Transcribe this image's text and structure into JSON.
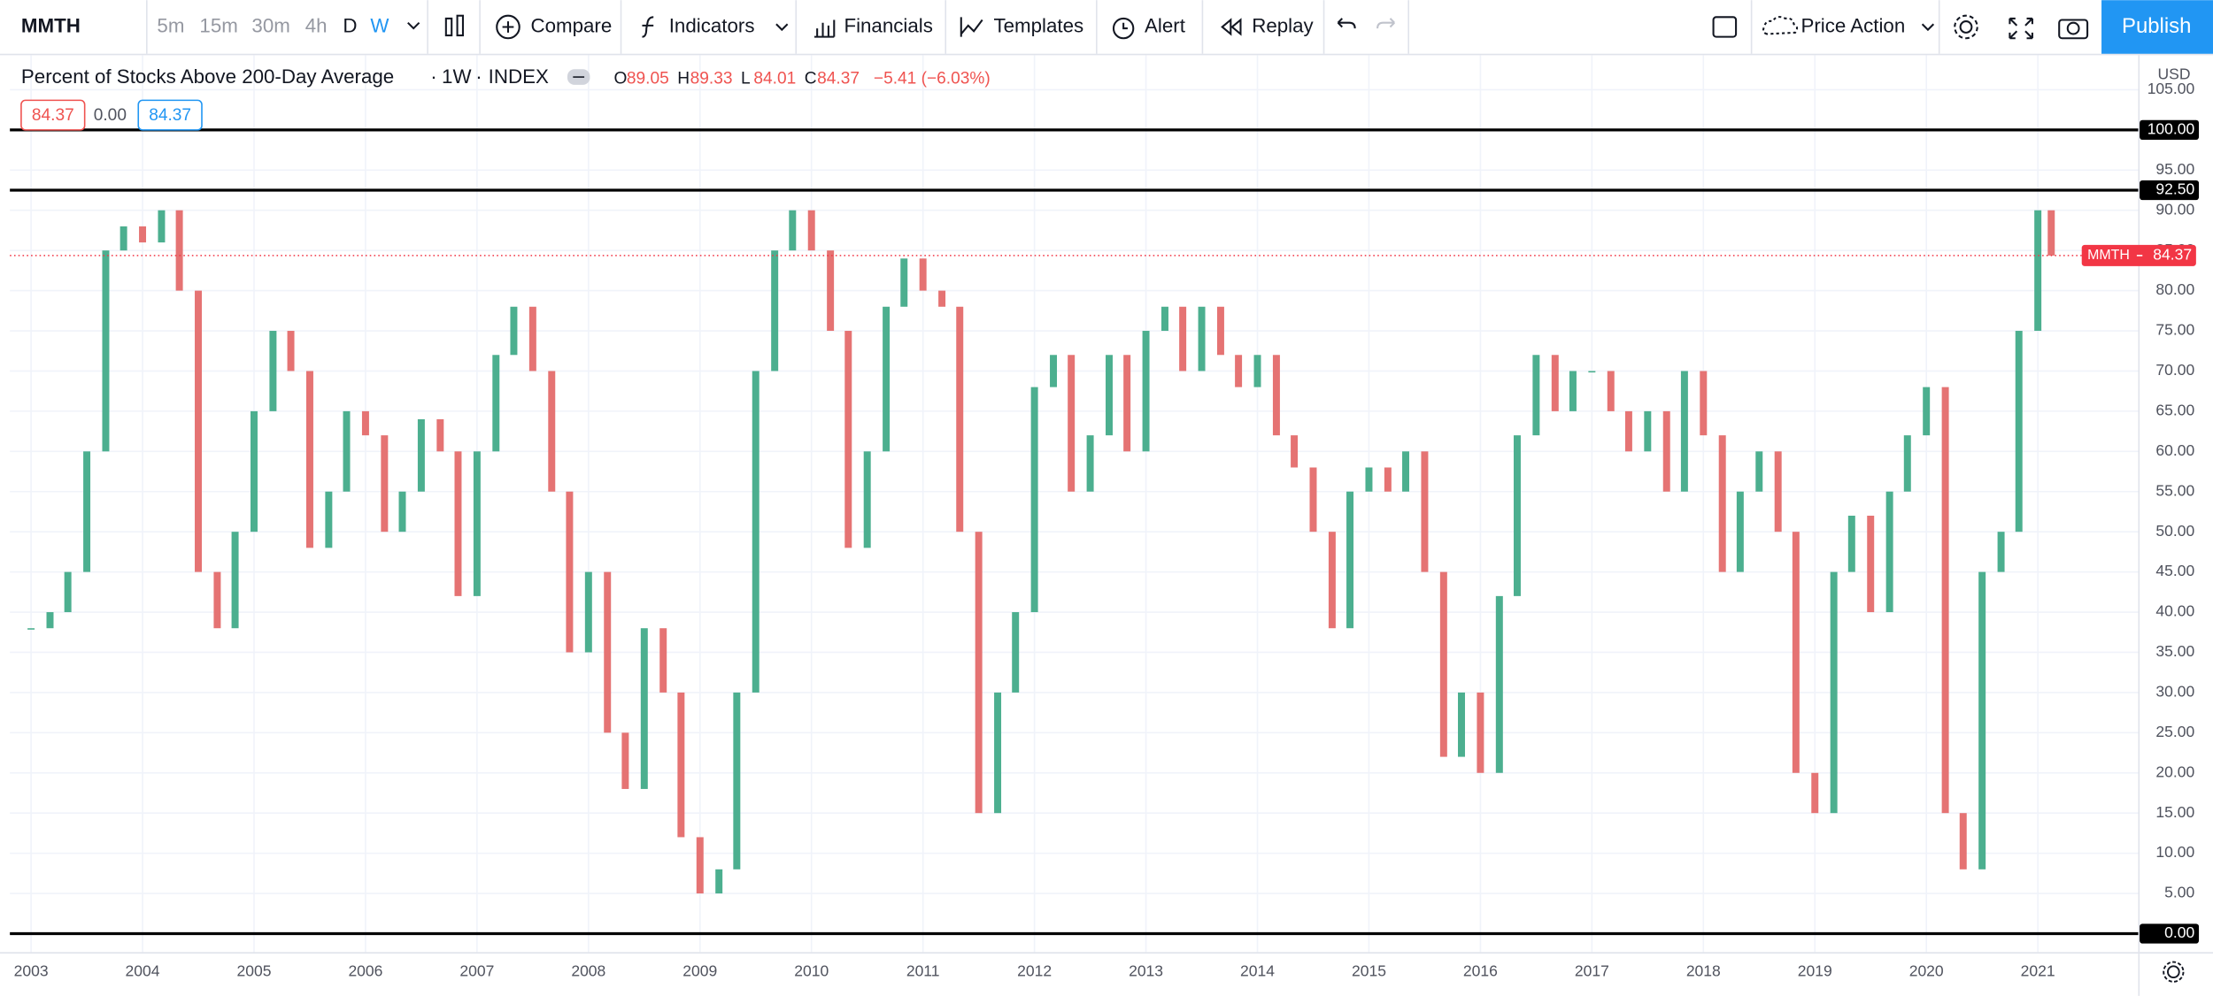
{
  "toolbar": {
    "symbol": "MMTH",
    "intervals": [
      "5m",
      "15m",
      "30m",
      "4h",
      "D",
      "W"
    ],
    "buttons": [
      "Compare",
      "Indicators",
      "Financials",
      "Templates",
      "Alert",
      "Replay"
    ],
    "layout": "Price Action",
    "publish": "Publish"
  },
  "legend": {
    "title": "Percent of Stocks Above 200-Day Average",
    "interval": "1W",
    "exchange": "INDEX",
    "ohlc": [
      {
        "label": "O",
        "value": "89.05"
      },
      {
        "label": "H",
        "value": "89.33"
      },
      {
        "label": "L",
        "value": "84.01"
      },
      {
        "label": "C",
        "value": "84.37"
      }
    ],
    "change": "−5.41 (−6.03%)",
    "value_boxes": [
      "84.37",
      "0.00",
      "84.37"
    ]
  },
  "chart_data": {
    "type": "candlestick",
    "currency": "USD",
    "x": [
      2003,
      2003.17,
      2003.33,
      2003.5,
      2003.67,
      2003.83,
      2004,
      2004.17,
      2004.33,
      2004.5,
      2004.67,
      2004.83,
      2005,
      2005.17,
      2005.33,
      2005.5,
      2005.67,
      2005.83,
      2006,
      2006.17,
      2006.33,
      2006.5,
      2006.67,
      2006.83,
      2007,
      2007.17,
      2007.33,
      2007.5,
      2007.67,
      2007.83,
      2008,
      2008.17,
      2008.33,
      2008.5,
      2008.67,
      2008.83,
      2009,
      2009.17,
      2009.33,
      2009.5,
      2009.67,
      2009.83,
      2010,
      2010.17,
      2010.33,
      2010.5,
      2010.67,
      2010.83,
      2011,
      2011.17,
      2011.33,
      2011.5,
      2011.67,
      2011.83,
      2012,
      2012.17,
      2012.33,
      2012.5,
      2012.67,
      2012.83,
      2013,
      2013.17,
      2013.33,
      2013.5,
      2013.67,
      2013.83,
      2014,
      2014.17,
      2014.33,
      2014.5,
      2014.67,
      2014.83,
      2015,
      2015.17,
      2015.33,
      2015.5,
      2015.67,
      2015.83,
      2016,
      2016.17,
      2016.33,
      2016.5,
      2016.67,
      2016.83,
      2017,
      2017.17,
      2017.33,
      2017.5,
      2017.67,
      2017.83,
      2018,
      2018.17,
      2018.33,
      2018.5,
      2018.67,
      2018.83,
      2019,
      2019.17,
      2019.33,
      2019.5,
      2019.67,
      2019.83,
      2020,
      2020.17,
      2020.33,
      2020.5,
      2020.67,
      2020.83,
      2021,
      2021.12
    ],
    "series": [
      {
        "name": "MMTH",
        "up_color": "#4caf8f",
        "down_color": "#e57373",
        "values": [
          38,
          40,
          45,
          60,
          85,
          88,
          86,
          90,
          80,
          45,
          38,
          50,
          65,
          75,
          70,
          48,
          55,
          65,
          62,
          50,
          55,
          64,
          60,
          42,
          60,
          72,
          78,
          70,
          55,
          35,
          45,
          25,
          18,
          38,
          30,
          12,
          5,
          8,
          30,
          70,
          85,
          90,
          85,
          75,
          48,
          60,
          78,
          84,
          80,
          78,
          50,
          15,
          30,
          40,
          68,
          72,
          55,
          62,
          72,
          60,
          75,
          78,
          70,
          78,
          72,
          68,
          72,
          62,
          58,
          50,
          38,
          55,
          58,
          55,
          60,
          45,
          22,
          30,
          20,
          42,
          62,
          72,
          65,
          70,
          70,
          65,
          60,
          65,
          55,
          70,
          62,
          45,
          55,
          60,
          50,
          20,
          15,
          45,
          52,
          40,
          55,
          62,
          68,
          15,
          8,
          45,
          50,
          75,
          90,
          84.37
        ]
      }
    ],
    "xlim": [
      2002.81,
      2021.9
    ],
    "xticks": [
      2003,
      2004,
      2005,
      2006,
      2007,
      2008,
      2009,
      2010,
      2011,
      2012,
      2013,
      2014,
      2015,
      2016,
      2017,
      2018,
      2019,
      2020,
      2021
    ],
    "ylim": [
      -2.3,
      109.3
    ],
    "yticks": [
      {
        "value": 5,
        "label": "5.00"
      },
      {
        "value": 10,
        "label": "10.00"
      },
      {
        "value": 15,
        "label": "15.00"
      },
      {
        "value": 20,
        "label": "20.00"
      },
      {
        "value": 25,
        "label": "25.00"
      },
      {
        "value": 30,
        "label": "30.00"
      },
      {
        "value": 35,
        "label": "35.00"
      },
      {
        "value": 40,
        "label": "40.00"
      },
      {
        "value": 45,
        "label": "45.00"
      },
      {
        "value": 50,
        "label": "50.00"
      },
      {
        "value": 55,
        "label": "55.00"
      },
      {
        "value": 60,
        "label": "60.00"
      },
      {
        "value": 65,
        "label": "65.00"
      },
      {
        "value": 70,
        "label": "70.00"
      },
      {
        "value": 75,
        "label": "75.00"
      },
      {
        "value": 80,
        "label": "80.00"
      },
      {
        "value": 85,
        "label": "85.00"
      },
      {
        "value": 90,
        "label": "90.00"
      },
      {
        "value": 95,
        "label": "95.00"
      },
      {
        "value": 105,
        "label": "105.00"
      }
    ],
    "hlines": [
      {
        "value": 100,
        "label": "100.00"
      },
      {
        "value": 92.5,
        "label": "92.50"
      },
      {
        "value": 0,
        "label": "0.00"
      }
    ],
    "last_price": {
      "value": 84.37,
      "label": "84.37",
      "color": "#f23645"
    },
    "grid": true
  }
}
